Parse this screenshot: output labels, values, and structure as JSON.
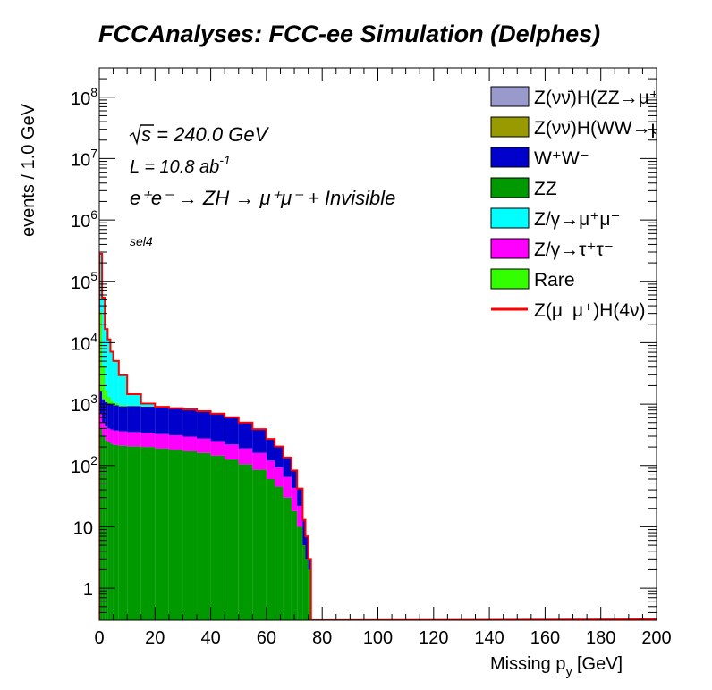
{
  "chart_data": {
    "type": "bar",
    "title": "FCCAnalyses: FCC-ee Simulation (Delphes)",
    "xlabel_main": "Missing p",
    "xlabel_sub": "y",
    "xlabel_unit": "[GeV]",
    "ylabel": "events / 1.0 GeV",
    "xlim": [
      0,
      200
    ],
    "ylim": [
      0.3,
      300000000
    ],
    "yscale": "log",
    "stacked": true,
    "x_ticks": [
      "0",
      "20",
      "40",
      "60",
      "80",
      "100",
      "120",
      "140",
      "160",
      "180",
      "200"
    ],
    "y_ticks": [
      {
        "value": 1,
        "base": "1",
        "exp": ""
      },
      {
        "value": 10,
        "base": "10",
        "exp": ""
      },
      {
        "value": 100,
        "base": "10",
        "exp": "2"
      },
      {
        "value": 1000,
        "base": "10",
        "exp": "3"
      },
      {
        "value": 10000,
        "base": "10",
        "exp": "4"
      },
      {
        "value": 100000,
        "base": "10",
        "exp": "5"
      },
      {
        "value": 1000000,
        "base": "10",
        "exp": "6"
      },
      {
        "value": 10000000,
        "base": "10",
        "exp": "7"
      },
      {
        "value": 100000000,
        "base": "10",
        "exp": "8"
      }
    ],
    "annotations": {
      "sqrt_s": "s = 240.0 GeV",
      "lumi_main": "L = 10.8 ab",
      "lumi_exp": "-1",
      "process": "e⁺e⁻ → ZH → μ⁺μ⁻ + Invisible",
      "selection": "sel4"
    },
    "x_bins": [
      0,
      1,
      2,
      3,
      4,
      5,
      7,
      10,
      15,
      20,
      25,
      30,
      35,
      40,
      45,
      50,
      55,
      60,
      63,
      66,
      69,
      71,
      73,
      74,
      75,
      76
    ],
    "series": [
      {
        "name": "ZZ",
        "color": "#009900",
        "values": [
          400,
          300,
          260,
          240,
          225,
          215,
          210,
          205,
          200,
          190,
          180,
          170,
          160,
          145,
          125,
          105,
          85,
          60,
          45,
          30,
          18,
          10,
          5,
          3,
          2,
          0
        ]
      },
      {
        "name": "Z/γ→τ⁺τ⁻",
        "color": "#ff00ff",
        "values": [
          300,
          200,
          170,
          160,
          160,
          155,
          150,
          145,
          140,
          135,
          130,
          125,
          115,
          105,
          95,
          85,
          75,
          60,
          48,
          35,
          25,
          12,
          0,
          0,
          0,
          0
        ]
      },
      {
        "name": "W⁺W⁻",
        "color": "#0000cc",
        "values": [
          900,
          700,
          650,
          620,
          600,
          590,
          560,
          580,
          570,
          555,
          540,
          520,
          490,
          450,
          390,
          310,
          230,
          150,
          110,
          70,
          40,
          20,
          8,
          4,
          1,
          0
        ]
      },
      {
        "name": "Rare",
        "color": "#33ff00",
        "values": [
          30000,
          3000,
          600,
          300,
          150,
          80,
          40,
          20,
          10,
          5,
          4,
          3,
          2,
          1,
          1,
          1,
          1,
          0,
          0,
          0,
          0,
          0,
          0,
          0,
          0,
          0
        ]
      },
      {
        "name": "Z/γ→μ⁺μ⁻",
        "color": "#00ffff",
        "values": [
          250000,
          50000,
          15000,
          10000,
          6000,
          4000,
          2000,
          500,
          100,
          20,
          5,
          2,
          0,
          0,
          0,
          0,
          0,
          0,
          0,
          0,
          0,
          0,
          0,
          0,
          0,
          0
        ]
      },
      {
        "name": "Z(νν̄)H(ZZ→μ⁺μ⁻ν⁺ν⁻)",
        "color": "#9999cc",
        "values": []
      },
      {
        "name": "Z(νν̄)H(WW→μ⁺νμ⁻ν)",
        "color": "#999900",
        "values": []
      },
      {
        "name": "Z(μ⁻μ⁺)H(4ν)",
        "color": "#ff0000",
        "values": [],
        "style": "line"
      }
    ],
    "legend": {
      "position": "top-right",
      "entries": [
        {
          "label": "Z(νν̄)H(ZZ→μ⁺μ⁻ν⁺ν⁻)",
          "color": "#9999cc",
          "kind": "box"
        },
        {
          "label": "Z(νν̄)H(WW→μ⁺νμ⁻ν)",
          "color": "#999900",
          "kind": "box"
        },
        {
          "label": "W⁺W⁻",
          "color": "#0000cc",
          "kind": "box"
        },
        {
          "label": "ZZ",
          "color": "#009900",
          "kind": "box"
        },
        {
          "label": "Z/γ→μ⁺μ⁻",
          "color": "#00ffff",
          "kind": "box"
        },
        {
          "label": "Z/γ→τ⁺τ⁻",
          "color": "#ff00ff",
          "kind": "box"
        },
        {
          "label": "Rare",
          "color": "#33ff00",
          "kind": "box"
        },
        {
          "label": "Z(μ⁻μ⁺)H(4ν)",
          "color": "#ff0000",
          "kind": "line"
        }
      ]
    }
  }
}
